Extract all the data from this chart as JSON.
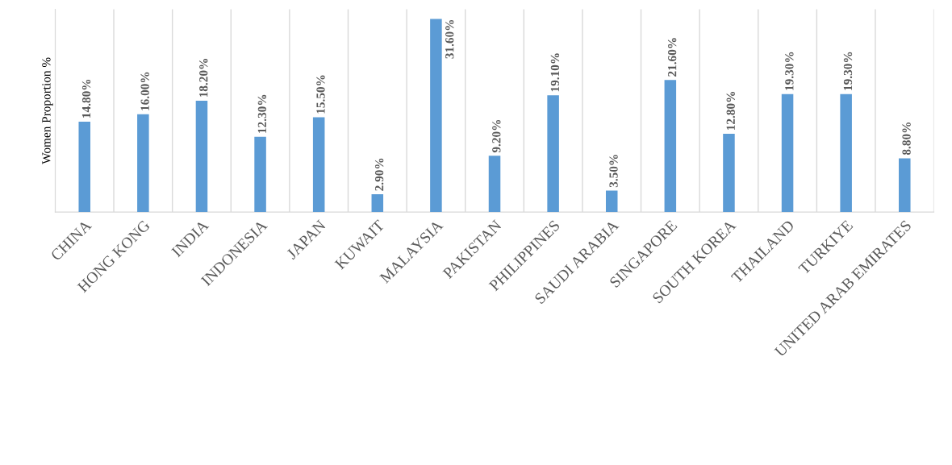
{
  "chart_data": {
    "type": "bar",
    "ylabel": "Women Proportion %",
    "categories": [
      "CHINA",
      "HONG KONG",
      "INDIA",
      "INDONESIA",
      "JAPAN",
      "KUWAIT",
      "MALAYSIA",
      "PAKISTAN",
      "PHILIPPINES",
      "SAUDI ARABIA",
      "SINGAPORE",
      "SOUTH KOREA",
      "THAILAND",
      "TURKIYE",
      "UNITED ARAB EMIRATES"
    ],
    "values": [
      14.8,
      16.0,
      18.2,
      12.3,
      15.5,
      2.9,
      31.6,
      9.2,
      19.1,
      3.5,
      21.6,
      12.8,
      19.3,
      19.3,
      8.8
    ],
    "value_labels": [
      "14.80%",
      "16.00%",
      "18.20%",
      "12.30%",
      "15.50%",
      "2.90%",
      "31.60%",
      "9.20%",
      "19.10%",
      "3.50%",
      "21.60%",
      "12.80%",
      "19.30%",
      "19.30%",
      "8.80%"
    ],
    "color": "#5b9bd5",
    "grid": "x",
    "tick_labels": "x"
  }
}
